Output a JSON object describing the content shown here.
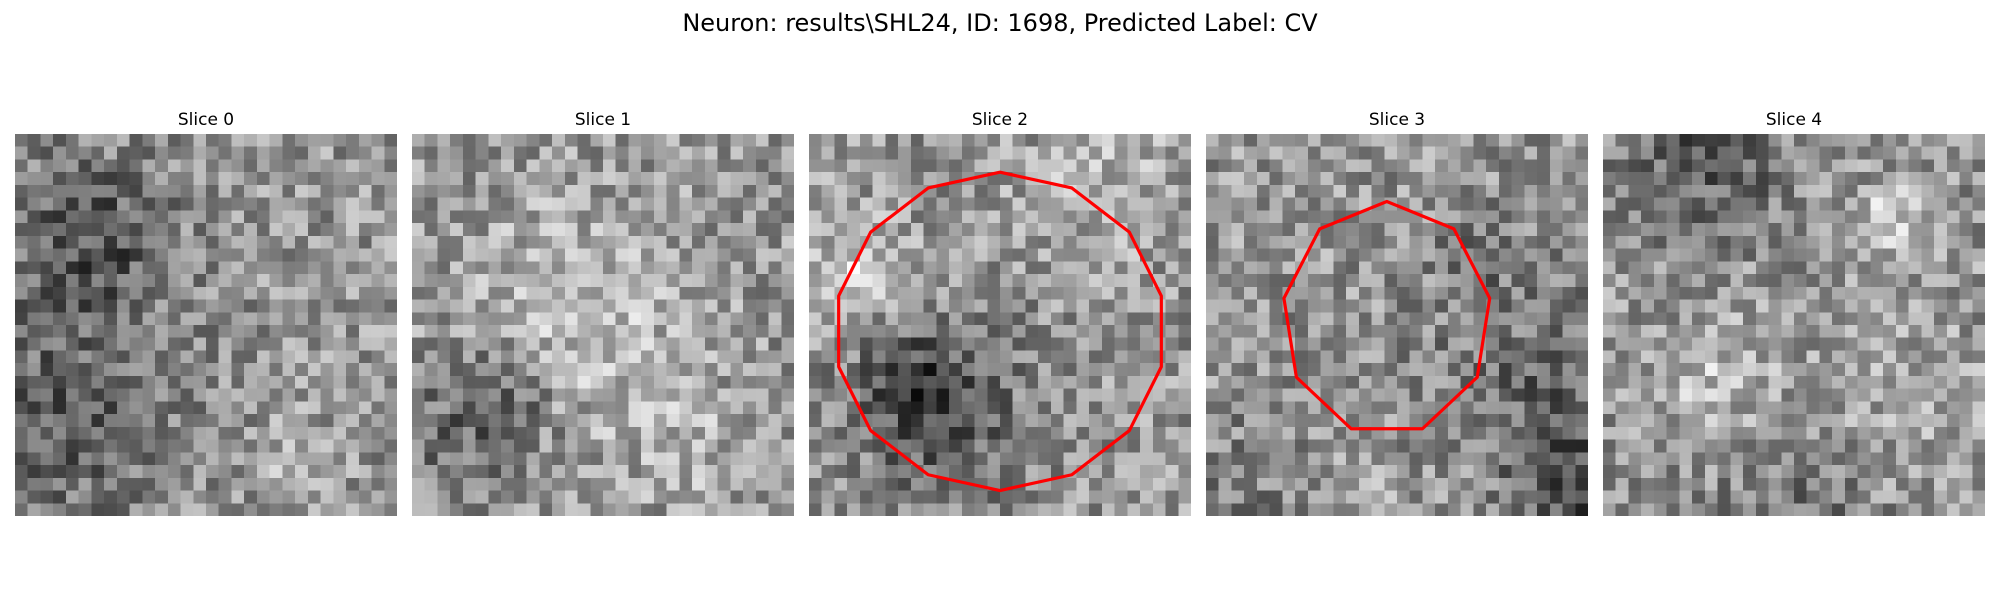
{
  "figure": {
    "title": "Neuron: results\\SHL24, ID: 1698, Predicted Label: CV"
  },
  "slices": [
    {
      "label": "Slice 0",
      "has_contour": false,
      "seed": 11
    },
    {
      "label": "Slice 1",
      "has_contour": false,
      "seed": 23
    },
    {
      "label": "Slice 2",
      "has_contour": true,
      "seed": 37
    },
    {
      "label": "Slice 3",
      "has_contour": true,
      "seed": 41
    },
    {
      "label": "Slice 4",
      "has_contour": false,
      "seed": 59
    }
  ],
  "colors": {
    "contour": "#ff0000",
    "colormap": "gray"
  }
}
